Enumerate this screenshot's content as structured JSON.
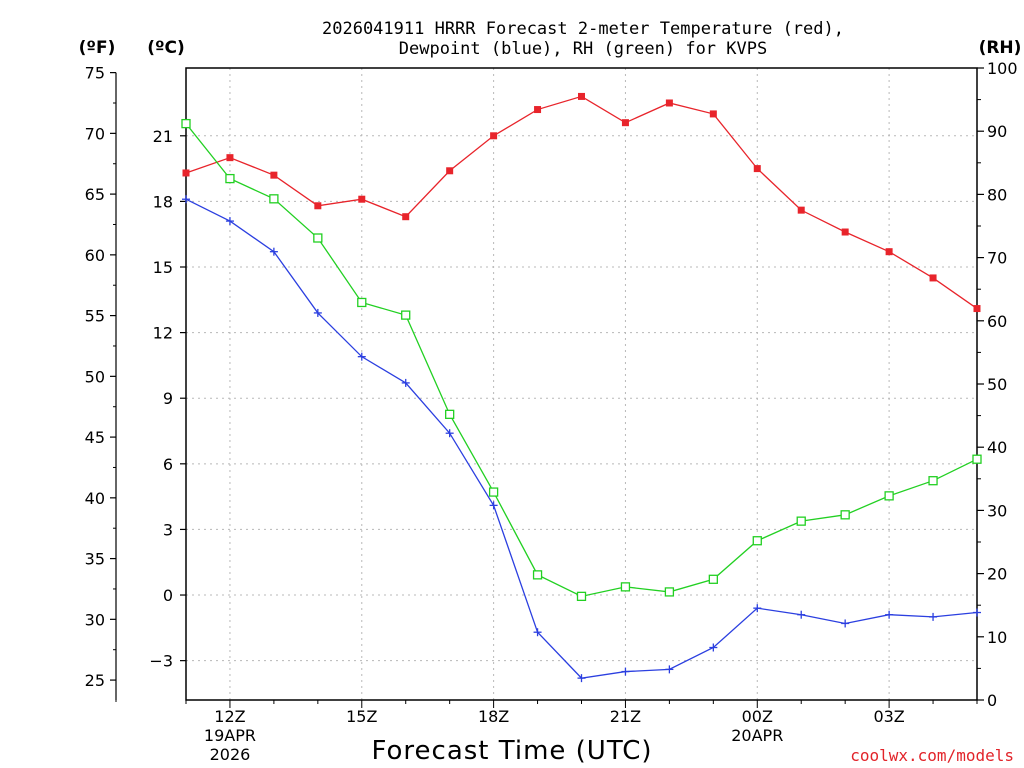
{
  "chart_data": {
    "type": "line",
    "title_line1": "2026041911 HRRR Forecast 2-meter Temperature (red),",
    "title_line2": "Dewpoint (blue), RH (green) for KVPS",
    "unit_fahrenheit": "(ºF)",
    "unit_celsius": "(ºC)",
    "unit_rh": "(RH)",
    "xlabel": "Forecast Time (UTC)",
    "credit": "coolwx.com/models",
    "hours_from_12Z": [
      -1,
      0,
      1,
      2,
      3,
      4,
      5,
      6,
      7,
      8,
      9,
      10,
      11,
      12,
      13,
      14,
      15,
      16,
      17
    ],
    "x_range": [
      -1,
      17
    ],
    "x_ticks": [
      {
        "hour": 0,
        "label": "12Z",
        "sub1": "19APR",
        "sub2": "2026"
      },
      {
        "hour": 3,
        "label": "15Z"
      },
      {
        "hour": 6,
        "label": "18Z"
      },
      {
        "hour": 9,
        "label": "21Z"
      },
      {
        "hour": 12,
        "label": "00Z",
        "sub1": "20APR"
      },
      {
        "hour": 15,
        "label": "03Z"
      }
    ],
    "celsius_range": [
      -4.8,
      24.1
    ],
    "celsius_ticks": [
      "-3",
      "0",
      "3",
      "6",
      "9",
      "12",
      "15",
      "18",
      "21"
    ],
    "fahrenheit_ticks": [
      "25",
      "30",
      "35",
      "40",
      "45",
      "50",
      "55",
      "60",
      "65",
      "70",
      "75"
    ],
    "rh_range": [
      0,
      100
    ],
    "rh_ticks": [
      "0",
      "10",
      "20",
      "30",
      "40",
      "50",
      "60",
      "70",
      "80",
      "90",
      "100"
    ],
    "series": [
      {
        "name": "Temperature",
        "color": "#e8242b",
        "marker": "filled-square",
        "values_c": [
          19.3,
          20.0,
          19.2,
          17.8,
          18.1,
          17.3,
          19.4,
          21.0,
          22.2,
          22.8,
          21.6,
          22.5,
          22.0,
          19.5,
          17.6,
          16.6,
          15.7,
          14.5,
          13.1
        ]
      },
      {
        "name": "Dewpoint",
        "color": "#2b3fe0",
        "marker": "plus",
        "values_c": [
          18.1,
          17.1,
          15.7,
          12.9,
          10.9,
          9.7,
          7.4,
          4.1,
          -1.7,
          -3.8,
          -3.5,
          -3.4,
          -2.4,
          -0.6,
          -0.9,
          -1.3,
          -0.9,
          -1.0,
          -0.8
        ]
      },
      {
        "name": "RH",
        "color": "#22d022",
        "marker": "hollow-square",
        "values_rh": [
          91.2,
          82.5,
          79.3,
          73.1,
          62.9,
          60.9,
          45.2,
          32.9,
          19.8,
          16.4,
          17.9,
          17.1,
          19.1,
          25.2,
          28.3,
          29.3,
          32.3,
          34.7,
          38.1
        ]
      }
    ]
  }
}
